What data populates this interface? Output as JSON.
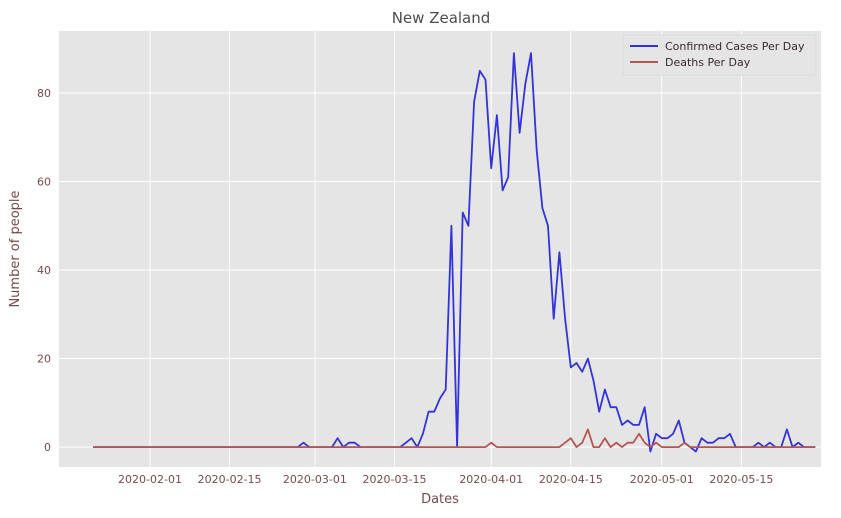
{
  "chart_data": {
    "type": "line",
    "title": "New Zealand",
    "xlabel": "Dates",
    "ylabel": "Number of people",
    "x_start": "2020-01-22",
    "x_end": "2020-05-23",
    "xlim": [
      "2020-01-16",
      "2020-05-29"
    ],
    "ylim": [
      -4.5,
      94
    ],
    "x_ticks": [
      "2020-02-01",
      "2020-02-15",
      "2020-03-01",
      "2020-03-15",
      "2020-04-01",
      "2020-04-15",
      "2020-05-01",
      "2020-05-15"
    ],
    "y_ticks": [
      0,
      20,
      40,
      60,
      80
    ],
    "grid": true,
    "legend_position": "top-right",
    "background": "#e5e5e5",
    "series": [
      {
        "name": "Confirmed Cases Per Day",
        "color": "#3333dd",
        "values": [
          0,
          0,
          0,
          0,
          0,
          0,
          0,
          0,
          0,
          0,
          0,
          0,
          0,
          0,
          0,
          0,
          0,
          0,
          0,
          0,
          0,
          0,
          0,
          0,
          0,
          0,
          0,
          0,
          0,
          0,
          0,
          0,
          0,
          0,
          0,
          0,
          0,
          1,
          0,
          0,
          0,
          0,
          0,
          2,
          0,
          1,
          1,
          0,
          0,
          0,
          0,
          0,
          0,
          0,
          0,
          1,
          2,
          0,
          3,
          8,
          8,
          11,
          13,
          50,
          0,
          53,
          50,
          78,
          85,
          83,
          63,
          75,
          58,
          61,
          89,
          71,
          82,
          89,
          67,
          54,
          50,
          29,
          44,
          29,
          18,
          19,
          17,
          20,
          15,
          8,
          13,
          9,
          9,
          5,
          6,
          5,
          5,
          9,
          -1,
          3,
          2,
          2,
          3,
          6,
          1,
          0,
          -1,
          2,
          1,
          1,
          2,
          2,
          3,
          0,
          0,
          0,
          0,
          1,
          0,
          1,
          0,
          0,
          4,
          0,
          1,
          0,
          0,
          0
        ]
      },
      {
        "name": "Deaths Per Day",
        "color": "#b85450",
        "values": [
          0,
          0,
          0,
          0,
          0,
          0,
          0,
          0,
          0,
          0,
          0,
          0,
          0,
          0,
          0,
          0,
          0,
          0,
          0,
          0,
          0,
          0,
          0,
          0,
          0,
          0,
          0,
          0,
          0,
          0,
          0,
          0,
          0,
          0,
          0,
          0,
          0,
          0,
          0,
          0,
          0,
          0,
          0,
          0,
          0,
          0,
          0,
          0,
          0,
          0,
          0,
          0,
          0,
          0,
          0,
          0,
          0,
          0,
          0,
          0,
          0,
          0,
          0,
          0,
          0,
          0,
          0,
          0,
          0,
          0,
          1,
          0,
          0,
          0,
          0,
          0,
          0,
          0,
          0,
          0,
          0,
          0,
          0,
          1,
          2,
          0,
          1,
          4,
          0,
          0,
          2,
          0,
          1,
          0,
          1,
          1,
          3,
          1,
          0,
          1,
          0,
          0,
          0,
          0,
          1,
          0,
          0,
          0,
          0,
          0,
          0,
          0,
          0,
          0,
          0,
          0,
          0,
          0,
          0,
          0,
          0,
          0,
          0,
          0,
          0,
          0,
          0,
          0
        ]
      }
    ]
  }
}
